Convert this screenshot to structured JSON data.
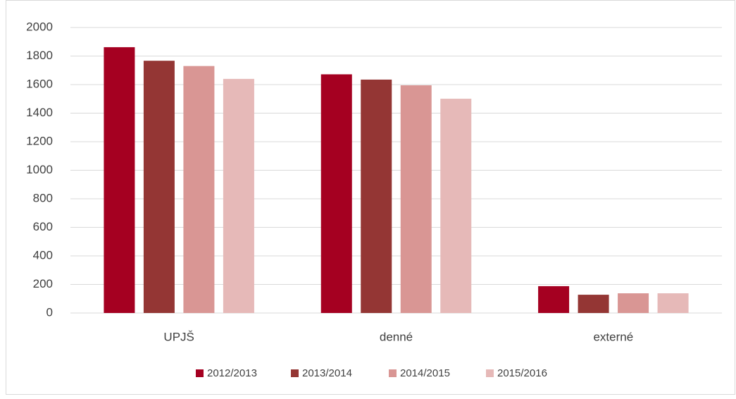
{
  "chart_data": {
    "type": "bar",
    "categories": [
      "UPJŠ",
      "denné",
      "externé"
    ],
    "series": [
      {
        "name": "2012/2013",
        "color": "#a50021",
        "values": [
          1862,
          1672,
          188
        ]
      },
      {
        "name": "2013/2014",
        "color": "#943634",
        "values": [
          1767,
          1635,
          128
        ]
      },
      {
        "name": "2014/2015",
        "color": "#d99694",
        "values": [
          1730,
          1595,
          138
        ]
      },
      {
        "name": "2015/2016",
        "color": "#e6b9b8",
        "values": [
          1640,
          1501,
          138
        ]
      }
    ],
    "ylim": [
      0,
      2000
    ],
    "yticks": [
      0,
      200,
      400,
      600,
      800,
      1000,
      1200,
      1400,
      1600,
      1800,
      2000
    ],
    "grid": true,
    "legend": "bottom"
  }
}
